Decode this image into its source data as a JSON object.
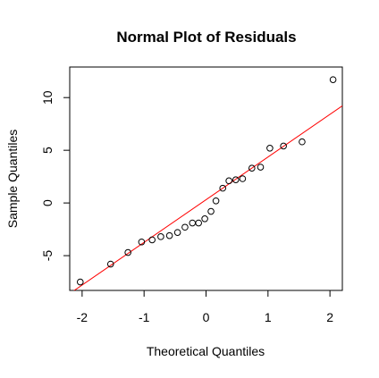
{
  "chart_data": {
    "type": "scatter",
    "title": "Normal Plot of Residuals",
    "xlabel": "Theoretical Quantiles",
    "ylabel": "Sample Quantiles",
    "xlim": [
      -2.2,
      2.2
    ],
    "ylim": [
      -8.3,
      12.9
    ],
    "x_ticks": [
      -2,
      -1,
      0,
      1,
      2
    ],
    "x_tick_labels": [
      "-2",
      "-1",
      "0",
      "1",
      "2"
    ],
    "y_ticks": [
      -5,
      0,
      5,
      10
    ],
    "y_tick_labels": [
      "-5",
      "0",
      "5",
      "10"
    ],
    "grid": false,
    "series": [
      {
        "marker": "open-circle",
        "color": "#000000",
        "points": [
          {
            "x": -2.03,
            "y": -7.5
          },
          {
            "x": -1.54,
            "y": -5.8
          },
          {
            "x": -1.26,
            "y": -4.7
          },
          {
            "x": -1.04,
            "y": -3.7
          },
          {
            "x": -0.87,
            "y": -3.5
          },
          {
            "x": -0.73,
            "y": -3.2
          },
          {
            "x": -0.59,
            "y": -3.1
          },
          {
            "x": -0.46,
            "y": -2.8
          },
          {
            "x": -0.34,
            "y": -2.3
          },
          {
            "x": -0.22,
            "y": -1.9
          },
          {
            "x": -0.12,
            "y": -1.9
          },
          {
            "x": -0.02,
            "y": -1.5
          },
          {
            "x": 0.08,
            "y": -0.8
          },
          {
            "x": 0.16,
            "y": 0.2
          },
          {
            "x": 0.27,
            "y": 1.4
          },
          {
            "x": 0.37,
            "y": 2.1
          },
          {
            "x": 0.48,
            "y": 2.2
          },
          {
            "x": 0.59,
            "y": 2.3
          },
          {
            "x": 0.74,
            "y": 3.3
          },
          {
            "x": 0.88,
            "y": 3.4
          },
          {
            "x": 1.03,
            "y": 5.2
          },
          {
            "x": 1.25,
            "y": 5.4
          },
          {
            "x": 1.55,
            "y": 5.8
          },
          {
            "x": 2.05,
            "y": 11.7
          }
        ]
      }
    ],
    "reference_line": {
      "color": "#ff0000",
      "intercept": 0.31,
      "slope": 4.05
    }
  }
}
